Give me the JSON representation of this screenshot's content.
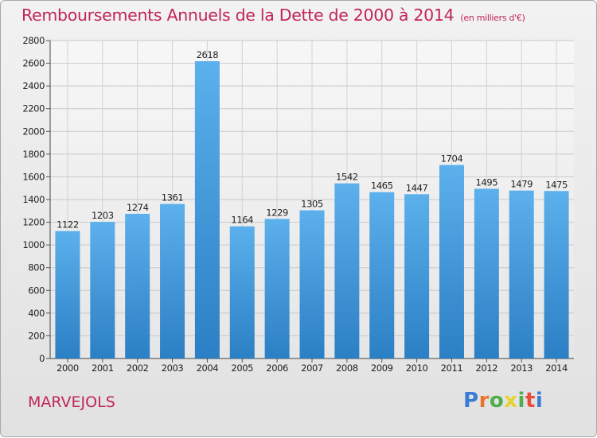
{
  "title": "Remboursements Annuels de la Dette de 2000 à 2014",
  "unit_note": "(en milliers d'€)",
  "commune": "MARVEJOLS",
  "logo": {
    "letters": [
      "P",
      "r",
      "o",
      "x",
      "i",
      "t",
      "i"
    ],
    "colors": [
      "#3a7bd5",
      "#e8772e",
      "#4cae4c",
      "#e8d22e",
      "#4cae4c",
      "#e84c3d",
      "#3a7bd5"
    ]
  },
  "chart_data": {
    "type": "bar",
    "categories": [
      "2000",
      "2001",
      "2002",
      "2003",
      "2004",
      "2005",
      "2006",
      "2007",
      "2008",
      "2009",
      "2010",
      "2011",
      "2012",
      "2013",
      "2014"
    ],
    "values": [
      1122,
      1203,
      1274,
      1361,
      2618,
      1164,
      1229,
      1305,
      1542,
      1465,
      1447,
      1704,
      1495,
      1479,
      1475
    ],
    "title": "Remboursements Annuels de la Dette de 2000 à 2014",
    "ylim": [
      0,
      2800
    ],
    "yticks": [
      0,
      200,
      400,
      600,
      800,
      1000,
      1200,
      1400,
      1600,
      1800,
      2000,
      2200,
      2400,
      2600,
      2800
    ],
    "grid": true,
    "bar_color": "#4a9fe0"
  }
}
